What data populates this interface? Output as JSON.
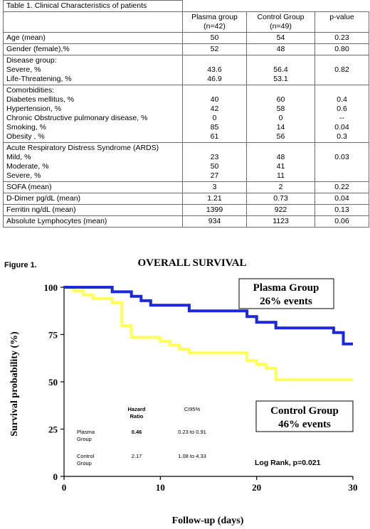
{
  "table": {
    "caption": "Table 1. Clinical Characteristics of patients",
    "headers": {
      "plasma": [
        "Plasma group",
        "(n=42)"
      ],
      "control": [
        "Control Group",
        "(n=49)"
      ],
      "pvalue": "p-value"
    },
    "rows": [
      {
        "label": [
          "Age (mean)"
        ],
        "plasma": [
          "50"
        ],
        "control": [
          "54"
        ],
        "p": [
          "0.23"
        ]
      },
      {
        "label": [
          "Gender (female),%"
        ],
        "plasma": [
          "52"
        ],
        "control": [
          "48"
        ],
        "p": [
          "0.80"
        ]
      },
      {
        "label": [
          "Disease group:",
          "Severe, %",
          "Life-Threatening, %"
        ],
        "plasma": [
          "",
          "43.6",
          "46.9"
        ],
        "control": [
          "",
          "56.4",
          "53.1"
        ],
        "p": [
          "",
          "0.82",
          ""
        ]
      },
      {
        "label": [
          "Comorbidities:",
          "Diabetes mellitus, %",
          "Hypertension, %",
          "Chronic Obstructive pulmonary disease, %",
          "Smoking, %",
          "Obesity , %"
        ],
        "plasma": [
          "",
          "40",
          "42",
          "0",
          "85",
          "61"
        ],
        "control": [
          "",
          "60",
          "58",
          "0",
          "14",
          "56"
        ],
        "p": [
          "",
          "0.4",
          "0.6",
          "--",
          "0.04",
          "0.3"
        ]
      },
      {
        "label": [
          "Acute Respiratory Distress Syndrome (ARDS)",
          "Mild, %",
          "Moderate, %",
          "Severe, %"
        ],
        "plasma": [
          "",
          "23",
          "50",
          "27"
        ],
        "control": [
          "",
          "48",
          "41",
          "11"
        ],
        "p": [
          "",
          "0.03",
          "",
          ""
        ]
      },
      {
        "label": [
          "SOFA (mean)"
        ],
        "plasma": [
          "3"
        ],
        "control": [
          "2"
        ],
        "p": [
          "0.22"
        ]
      },
      {
        "label": [
          "D-Dimer pg/dL (mean)"
        ],
        "plasma": [
          "1.21"
        ],
        "control": [
          "0.73"
        ],
        "p": [
          "0.04"
        ]
      },
      {
        "label": [
          "Ferritin ng/dL (mean)"
        ],
        "plasma": [
          "1399"
        ],
        "control": [
          "922"
        ],
        "p": [
          "0.13"
        ]
      },
      {
        "label": [
          "Absolute Lymphocytes (mean)"
        ],
        "plasma": [
          "934"
        ],
        "control": [
          "1123"
        ],
        "p": [
          "0.06"
        ]
      }
    ]
  },
  "figure": {
    "label": "Figure 1.",
    "title": "OVERALL SURVIVAL",
    "ylabel": "Survival probability (%)",
    "xlabel": "Follow-up (days)",
    "plasma_box": [
      "Plasma Group",
      "26% events"
    ],
    "control_box": [
      "Control Group",
      "46% events"
    ],
    "hr_table": {
      "head_hr": [
        "Hazard",
        "Ratio"
      ],
      "head_ci": "CI95%",
      "rows": [
        {
          "group": [
            "Plasma",
            "Group"
          ],
          "hr": "0.46",
          "ci": "0.23 to 0.91"
        },
        {
          "group": [
            "Control",
            "Group"
          ],
          "hr": "2.17",
          "ci": "1.08 to 4.33"
        }
      ]
    },
    "logrank": "Log Rank, p=0.021"
  },
  "chart_data": {
    "type": "line",
    "title": "OVERALL SURVIVAL",
    "xlabel": "Follow-up (days)",
    "ylabel": "Survival probability (%)",
    "xlim": [
      0,
      30
    ],
    "ylim": [
      0,
      100
    ],
    "x_ticks": [
      0,
      10,
      20,
      30
    ],
    "y_ticks": [
      0,
      25,
      50,
      75,
      100
    ],
    "grid": false,
    "step": true,
    "series": [
      {
        "name": "Plasma Group",
        "color": "#1a2ad6",
        "points": [
          [
            0,
            100
          ],
          [
            5,
            100
          ],
          [
            5,
            97.6
          ],
          [
            7,
            97.6
          ],
          [
            7,
            95.2
          ],
          [
            8,
            95.2
          ],
          [
            8,
            92.9
          ],
          [
            9,
            92.9
          ],
          [
            9,
            90.5
          ],
          [
            13,
            90.5
          ],
          [
            13,
            87.5
          ],
          [
            19,
            87.5
          ],
          [
            19,
            84.5
          ],
          [
            20,
            84.5
          ],
          [
            20,
            81.5
          ],
          [
            22,
            81.5
          ],
          [
            22,
            78.5
          ],
          [
            28,
            78.5
          ],
          [
            28,
            76
          ],
          [
            29,
            76
          ],
          [
            29,
            70
          ],
          [
            30,
            70
          ]
        ]
      },
      {
        "name": "Control Group",
        "color": "#ffff55",
        "points": [
          [
            0,
            100
          ],
          [
            1,
            100
          ],
          [
            1,
            98
          ],
          [
            2,
            98
          ],
          [
            2,
            96
          ],
          [
            3,
            96
          ],
          [
            3,
            94
          ],
          [
            5,
            94
          ],
          [
            5,
            91.8
          ],
          [
            6,
            91.8
          ],
          [
            6,
            79.6
          ],
          [
            7,
            79.6
          ],
          [
            7,
            73.5
          ],
          [
            10,
            73.5
          ],
          [
            10,
            71.4
          ],
          [
            11,
            71.4
          ],
          [
            11,
            69.4
          ],
          [
            12,
            69.4
          ],
          [
            12,
            67.3
          ],
          [
            13,
            67.3
          ],
          [
            13,
            65.3
          ],
          [
            19,
            65.3
          ],
          [
            19,
            61.2
          ],
          [
            20,
            61.2
          ],
          [
            20,
            59.2
          ],
          [
            21,
            59.2
          ],
          [
            21,
            57.1
          ],
          [
            22,
            57.1
          ],
          [
            22,
            51
          ],
          [
            30,
            51
          ]
        ]
      }
    ]
  }
}
